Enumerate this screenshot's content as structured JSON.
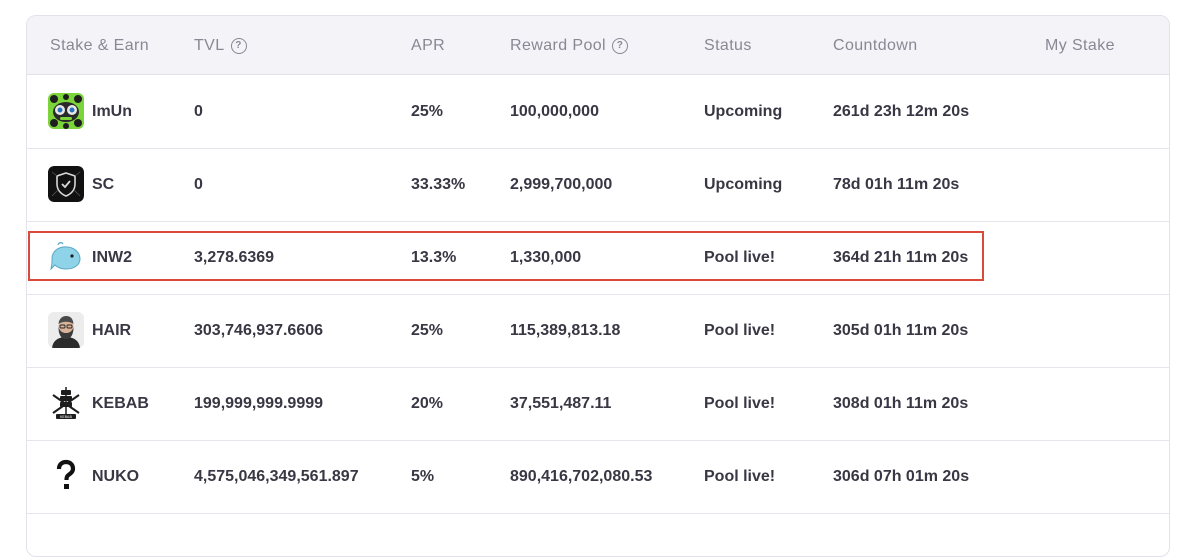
{
  "table": {
    "headers": {
      "stake_earn": "Stake & Earn",
      "tvl": "TVL",
      "apr": "APR",
      "reward_pool": "Reward Pool",
      "status": "Status",
      "countdown": "Countdown",
      "my_stake": "My Stake"
    },
    "rows": [
      {
        "name": "ImUn",
        "tvl": "0",
        "apr": "25%",
        "reward_pool": "100,000,000",
        "status": "Upcoming",
        "countdown": "261d 23h 12m 20s",
        "icon": "imun-logo-icon"
      },
      {
        "name": "SC",
        "tvl": "0",
        "apr": "33.33%",
        "reward_pool": "2,999,700,000",
        "status": "Upcoming",
        "countdown": "78d 01h 11m 20s",
        "icon": "shield-logo-icon"
      },
      {
        "name": "INW2",
        "tvl": "3,278.6369",
        "apr": "13.3%",
        "reward_pool": "1,330,000",
        "status": "Pool live!",
        "countdown": "364d 21h 11m 20s",
        "icon": "whale-logo-icon"
      },
      {
        "name": "HAIR",
        "tvl": "303,746,937.6606",
        "apr": "25%",
        "reward_pool": "115,389,813.18",
        "status": "Pool live!",
        "countdown": "305d 01h 11m 20s",
        "icon": "bearded-man-icon"
      },
      {
        "name": "KEBAB",
        "tvl": "199,999,999.9999",
        "apr": "20%",
        "reward_pool": "37,551,487.11",
        "status": "Pool live!",
        "countdown": "308d 01h 11m 20s",
        "icon": "kebab-logo-icon"
      },
      {
        "name": "NUKO",
        "tvl": "4,575,046,349,561.897",
        "apr": "5%",
        "reward_pool": "890,416,702,080.53",
        "status": "Pool live!",
        "countdown": "306d 07h 01m 20s",
        "icon": "question-mark-icon"
      }
    ]
  },
  "colors": {
    "highlight_border": "#d94a3a",
    "header_bg": "#f4f3f8",
    "text": "#3a3744",
    "header_text": "#8a8794"
  }
}
